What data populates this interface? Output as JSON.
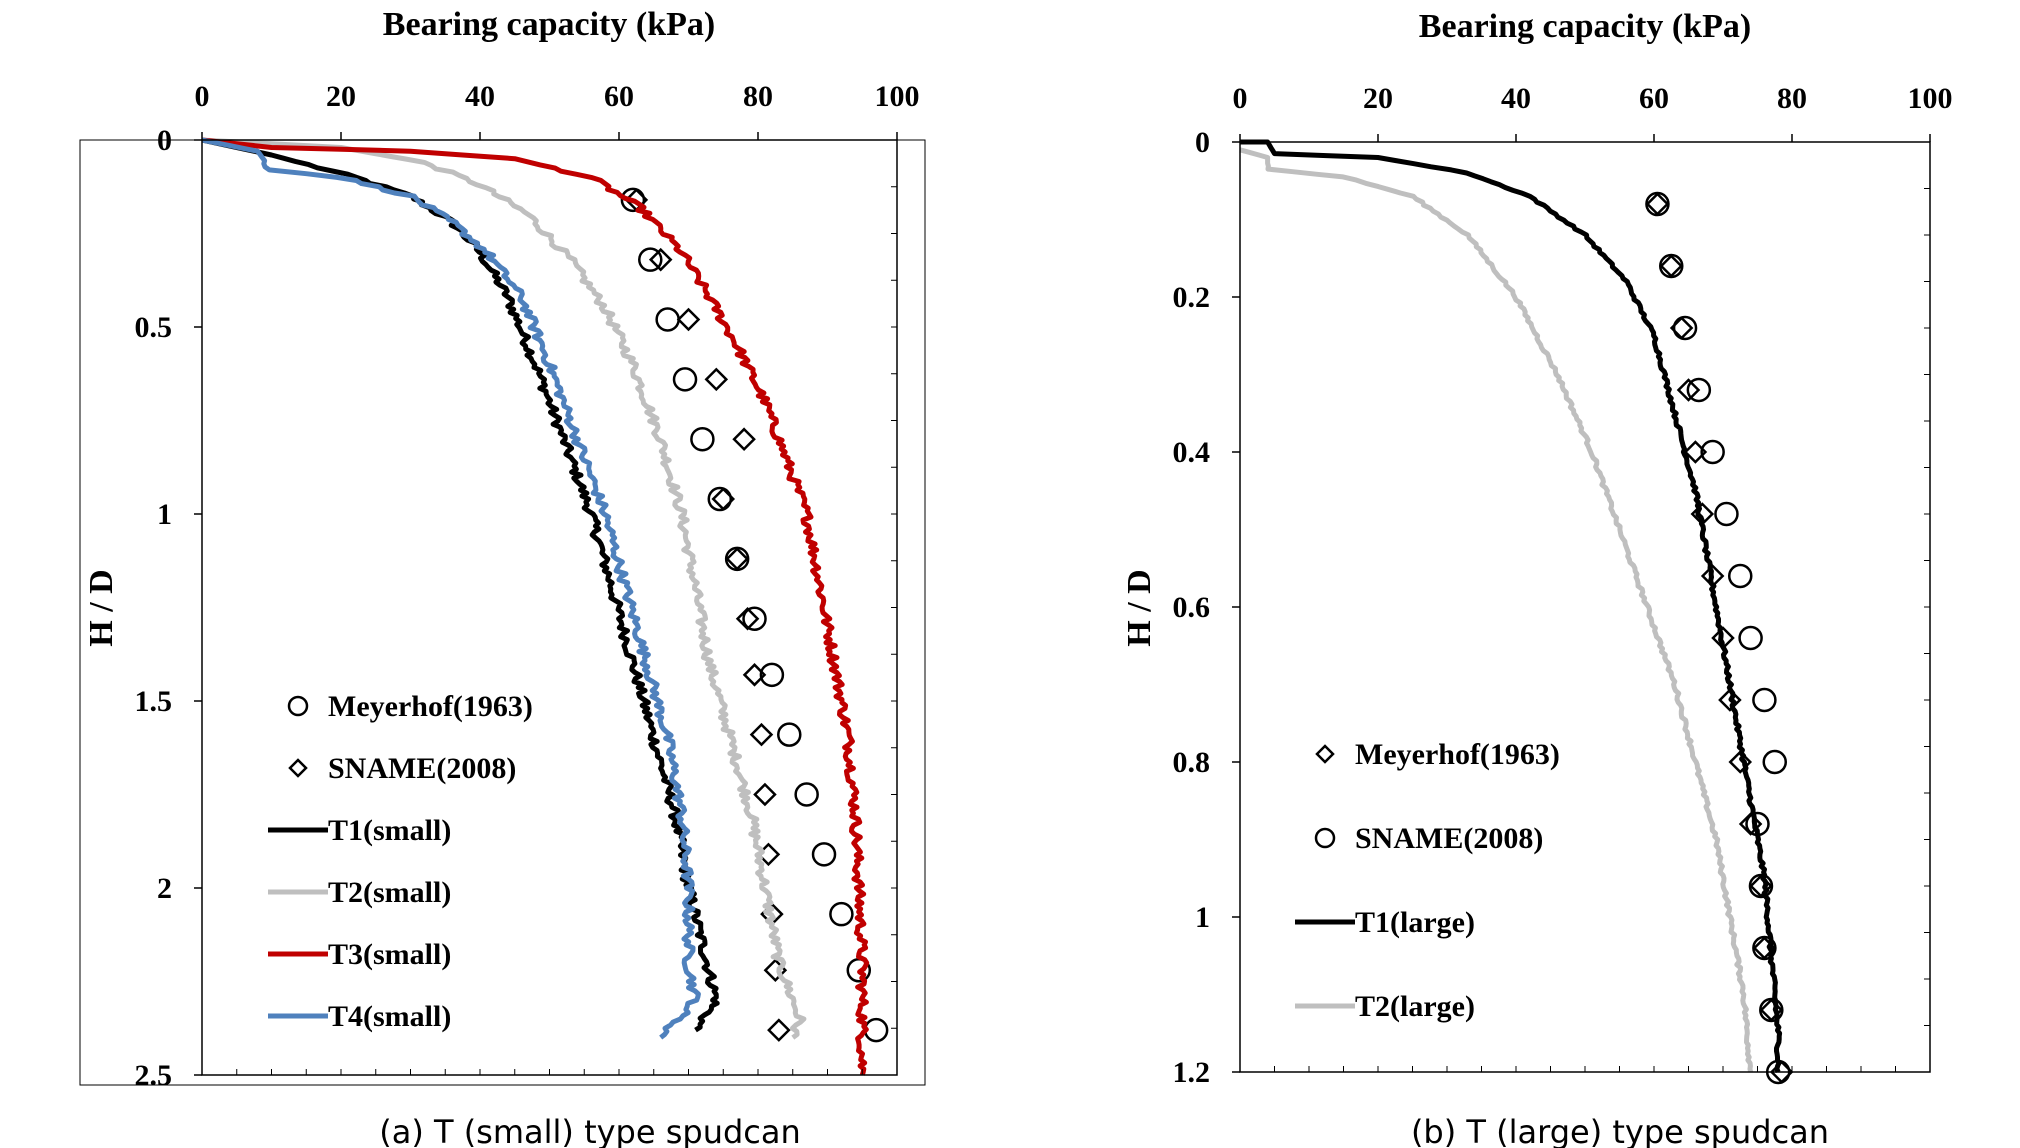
{
  "chart_data": [
    {
      "type": "line",
      "caption": "(a) T (small) type spudcan",
      "xlabel": "Bearing capacity (kPa)",
      "ylabel": "H / D",
      "xlim": [
        0,
        100
      ],
      "ylim": [
        0,
        2.5
      ],
      "y_inverted": true,
      "x_axis_position": "top",
      "grid": false,
      "xticks": [
        "0",
        "20",
        "40",
        "60",
        "80",
        "100"
      ],
      "yticks": [
        "0",
        "0.5",
        "1",
        "1.5",
        "2",
        "2.5"
      ],
      "legend_position": "bottom-left",
      "series": [
        {
          "name": "Meyerhof(1963)",
          "marker": "circle",
          "color": "#000000",
          "points": [
            [
              62,
              0.16
            ],
            [
              64.5,
              0.32
            ],
            [
              67,
              0.48
            ],
            [
              69.5,
              0.64
            ],
            [
              72,
              0.8
            ],
            [
              74.5,
              0.96
            ],
            [
              77,
              1.12
            ],
            [
              79.5,
              1.28
            ],
            [
              82,
              1.43
            ],
            [
              84.5,
              1.59
            ],
            [
              87,
              1.75
            ],
            [
              89.5,
              1.91
            ],
            [
              92,
              2.07
            ],
            [
              94.5,
              2.22
            ],
            [
              97,
              2.38
            ]
          ]
        },
        {
          "name": "SNAME(2008)",
          "marker": "diamond",
          "color": "#000000",
          "points": [
            [
              62.5,
              0.16
            ],
            [
              66,
              0.32
            ],
            [
              70,
              0.48
            ],
            [
              74,
              0.64
            ],
            [
              78,
              0.8
            ],
            [
              75,
              0.96
            ],
            [
              77,
              1.12
            ],
            [
              78.5,
              1.28
            ],
            [
              79.5,
              1.43
            ],
            [
              80.5,
              1.59
            ],
            [
              81,
              1.75
            ],
            [
              81.5,
              1.91
            ],
            [
              82,
              2.07
            ],
            [
              82.5,
              2.22
            ],
            [
              83,
              2.38
            ]
          ]
        },
        {
          "name": "T1(small)",
          "line": true,
          "color": "#000000",
          "points": [
            [
              0,
              0
            ],
            [
              10,
              0.04
            ],
            [
              22,
              0.1
            ],
            [
              30,
              0.15
            ],
            [
              36,
              0.22
            ],
            [
              40,
              0.3
            ],
            [
              44,
              0.42
            ],
            [
              48,
              0.6
            ],
            [
              52,
              0.8
            ],
            [
              56,
              1.0
            ],
            [
              59,
              1.2
            ],
            [
              62,
              1.4
            ],
            [
              65,
              1.6
            ],
            [
              68,
              1.8
            ],
            [
              70,
              2.0
            ],
            [
              72,
              2.15
            ],
            [
              74,
              2.3
            ],
            [
              71,
              2.38
            ]
          ]
        },
        {
          "name": "T2(small)",
          "line": true,
          "color": "#bfbfbf",
          "points": [
            [
              0,
              0
            ],
            [
              20,
              0.02
            ],
            [
              32,
              0.06
            ],
            [
              40,
              0.12
            ],
            [
              47,
              0.2
            ],
            [
              53,
              0.32
            ],
            [
              58,
              0.45
            ],
            [
              62,
              0.6
            ],
            [
              66,
              0.8
            ],
            [
              69,
              1.0
            ],
            [
              71,
              1.2
            ],
            [
              73,
              1.4
            ],
            [
              76,
              1.6
            ],
            [
              79,
              1.8
            ],
            [
              81,
              2.0
            ],
            [
              83,
              2.2
            ],
            [
              86,
              2.35
            ],
            [
              85,
              2.4
            ]
          ]
        },
        {
          "name": "T3(small)",
          "line": true,
          "color": "#c00000",
          "points": [
            [
              0,
              0
            ],
            [
              10,
              0.02
            ],
            [
              30,
              0.03
            ],
            [
              45,
              0.05
            ],
            [
              56,
              0.1
            ],
            [
              63,
              0.18
            ],
            [
              69,
              0.3
            ],
            [
              73,
              0.42
            ],
            [
              77,
              0.55
            ],
            [
              81,
              0.7
            ],
            [
              84,
              0.85
            ],
            [
              87,
              1.0
            ],
            [
              89,
              1.2
            ],
            [
              91,
              1.4
            ],
            [
              93,
              1.6
            ],
            [
              94,
              1.8
            ],
            [
              94.5,
              2.0
            ],
            [
              95,
              2.2
            ],
            [
              95,
              2.5
            ]
          ]
        },
        {
          "name": "T4(small)",
          "line": true,
          "color": "#4f81bd",
          "points": [
            [
              0,
              0
            ],
            [
              8,
              0.03
            ],
            [
              10,
              0.08
            ],
            [
              20,
              0.1
            ],
            [
              30,
              0.15
            ],
            [
              36,
              0.22
            ],
            [
              41,
              0.3
            ],
            [
              46,
              0.42
            ],
            [
              50,
              0.6
            ],
            [
              54,
              0.8
            ],
            [
              58,
              1.0
            ],
            [
              61,
              1.2
            ],
            [
              64,
              1.4
            ],
            [
              67,
              1.6
            ],
            [
              69,
              1.8
            ],
            [
              70,
              2.0
            ],
            [
              70,
              2.2
            ],
            [
              71,
              2.3
            ],
            [
              66,
              2.4
            ]
          ]
        }
      ]
    },
    {
      "type": "line",
      "caption": "(b) T (large) type spudcan",
      "xlabel": "Bearing capacity (kPa)",
      "ylabel": "H / D",
      "xlim": [
        0,
        100
      ],
      "ylim": [
        0,
        1.2
      ],
      "y_inverted": true,
      "x_axis_position": "top",
      "grid": false,
      "xticks": [
        "0",
        "20",
        "40",
        "60",
        "80",
        "100"
      ],
      "yticks": [
        "0",
        "0.2",
        "0.4",
        "0.6",
        "0.8",
        "1",
        "1.2"
      ],
      "legend_position": "bottom-left",
      "series": [
        {
          "name": "Meyerhof(1963)",
          "marker": "diamond",
          "color": "#000000",
          "points": [
            [
              60.5,
              0.08
            ],
            [
              62.5,
              0.16
            ],
            [
              64,
              0.24
            ],
            [
              65,
              0.32
            ],
            [
              66,
              0.4
            ],
            [
              67,
              0.48
            ],
            [
              68.5,
              0.56
            ],
            [
              70,
              0.64
            ],
            [
              71,
              0.72
            ],
            [
              72.5,
              0.8
            ],
            [
              74,
              0.88
            ],
            [
              75.5,
              0.96
            ],
            [
              76,
              1.04
            ],
            [
              77,
              1.12
            ],
            [
              78.5,
              1.2
            ]
          ]
        },
        {
          "name": "SNAME(2008)",
          "marker": "circle",
          "color": "#000000",
          "points": [
            [
              60.5,
              0.08
            ],
            [
              62.5,
              0.16
            ],
            [
              64.5,
              0.24
            ],
            [
              66.5,
              0.32
            ],
            [
              68.5,
              0.4
            ],
            [
              70.5,
              0.48
            ],
            [
              72.5,
              0.56
            ],
            [
              74,
              0.64
            ],
            [
              76,
              0.72
            ],
            [
              77.5,
              0.8
            ],
            [
              75,
              0.88
            ],
            [
              75.5,
              0.96
            ],
            [
              76,
              1.04
            ],
            [
              77,
              1.12
            ],
            [
              78,
              1.2
            ]
          ]
        },
        {
          "name": "T1(large)",
          "line": true,
          "color": "#000000",
          "points": [
            [
              0,
              0
            ],
            [
              4,
              0.0
            ],
            [
              5,
              0.015
            ],
            [
              20,
              0.02
            ],
            [
              33,
              0.04
            ],
            [
              42,
              0.07
            ],
            [
              50,
              0.12
            ],
            [
              56,
              0.18
            ],
            [
              60,
              0.25
            ],
            [
              63,
              0.35
            ],
            [
              66,
              0.45
            ],
            [
              68,
              0.55
            ],
            [
              70,
              0.65
            ],
            [
              72,
              0.75
            ],
            [
              74,
              0.85
            ],
            [
              76,
              0.95
            ],
            [
              77,
              1.05
            ],
            [
              78,
              1.15
            ],
            [
              78,
              1.2
            ]
          ]
        },
        {
          "name": "T2(large)",
          "line": true,
          "color": "#bfbfbf",
          "points": [
            [
              0,
              0.01
            ],
            [
              4,
              0.02
            ],
            [
              4,
              0.035
            ],
            [
              15,
              0.045
            ],
            [
              25,
              0.07
            ],
            [
              33,
              0.12
            ],
            [
              40,
              0.2
            ],
            [
              46,
              0.3
            ],
            [
              51,
              0.4
            ],
            [
              55,
              0.5
            ],
            [
              59,
              0.6
            ],
            [
              63,
              0.7
            ],
            [
              66,
              0.8
            ],
            [
              69,
              0.9
            ],
            [
              71,
              1.0
            ],
            [
              73,
              1.1
            ],
            [
              74,
              1.2
            ]
          ]
        }
      ]
    }
  ]
}
